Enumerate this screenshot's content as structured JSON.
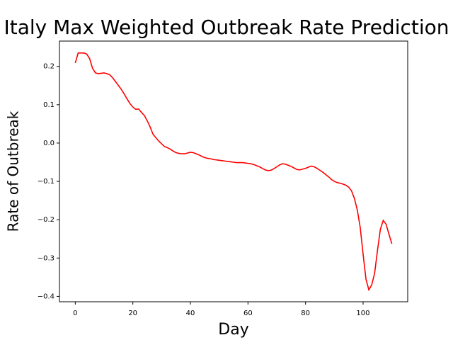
{
  "chart_data": {
    "type": "line",
    "title": "Italy Max Weighted Outbreak Rate Prediction",
    "x_label": "Day",
    "y_label": "Rate of Outbreak",
    "x": [
      0,
      1,
      2,
      3,
      4,
      5,
      6,
      7,
      8,
      9,
      10,
      11,
      12,
      13,
      14,
      15,
      16,
      17,
      18,
      19,
      20,
      21,
      22,
      23,
      24,
      25,
      26,
      27,
      28,
      29,
      30,
      31,
      32,
      33,
      34,
      35,
      36,
      37,
      38,
      39,
      40,
      41,
      42,
      43,
      44,
      45,
      46,
      47,
      48,
      49,
      50,
      51,
      52,
      53,
      54,
      55,
      56,
      57,
      58,
      59,
      60,
      61,
      62,
      63,
      64,
      65,
      66,
      67,
      68,
      69,
      70,
      71,
      72,
      73,
      74,
      75,
      76,
      77,
      78,
      79,
      80,
      81,
      82,
      83,
      84,
      85,
      86,
      87,
      88,
      89,
      90,
      91,
      92,
      93,
      94,
      95,
      96,
      97,
      98,
      99,
      100,
      101,
      102,
      103,
      104,
      105,
      106,
      107,
      108,
      109,
      110
    ],
    "series": [
      {
        "color": "#ff0000",
        "values": [
          0.209,
          0.235,
          0.235,
          0.235,
          0.232,
          0.22,
          0.195,
          0.183,
          0.181,
          0.182,
          0.183,
          0.181,
          0.178,
          0.17,
          0.16,
          0.15,
          0.14,
          0.128,
          0.115,
          0.103,
          0.094,
          0.088,
          0.089,
          0.08,
          0.072,
          0.058,
          0.042,
          0.023,
          0.014,
          0.005,
          -0.002,
          -0.009,
          -0.012,
          -0.016,
          -0.021,
          -0.025,
          -0.027,
          -0.028,
          -0.028,
          -0.026,
          -0.024,
          -0.025,
          -0.028,
          -0.031,
          -0.035,
          -0.038,
          -0.04,
          -0.041,
          -0.043,
          -0.044,
          -0.045,
          -0.046,
          -0.047,
          -0.048,
          -0.049,
          -0.05,
          -0.051,
          -0.051,
          -0.051,
          -0.052,
          -0.053,
          -0.054,
          -0.056,
          -0.059,
          -0.062,
          -0.066,
          -0.07,
          -0.072,
          -0.071,
          -0.067,
          -0.062,
          -0.057,
          -0.054,
          -0.055,
          -0.058,
          -0.061,
          -0.065,
          -0.069,
          -0.07,
          -0.068,
          -0.066,
          -0.063,
          -0.06,
          -0.062,
          -0.066,
          -0.071,
          -0.076,
          -0.082,
          -0.088,
          -0.095,
          -0.1,
          -0.103,
          -0.105,
          -0.107,
          -0.11,
          -0.115,
          -0.125,
          -0.145,
          -0.175,
          -0.22,
          -0.29,
          -0.355,
          -0.383,
          -0.37,
          -0.34,
          -0.28,
          -0.225,
          -0.202,
          -0.212,
          -0.238,
          -0.263
        ]
      }
    ],
    "xlim": [
      -5.5,
      115.5
    ],
    "xticks": [
      0,
      20,
      40,
      60,
      80,
      100
    ],
    "ylim": [
      -0.414,
      0.266
    ],
    "yticks": [
      {
        "value": -0.4,
        "label": "−0.4"
      },
      {
        "value": -0.3,
        "label": "−0.3"
      },
      {
        "value": -0.2,
        "label": "−0.2"
      },
      {
        "value": -0.1,
        "label": "−0.1"
      },
      {
        "value": 0,
        "label": "0.0"
      },
      {
        "value": 0.1,
        "label": "0.1"
      },
      {
        "value": 0.2,
        "label": "0.2"
      }
    ]
  }
}
